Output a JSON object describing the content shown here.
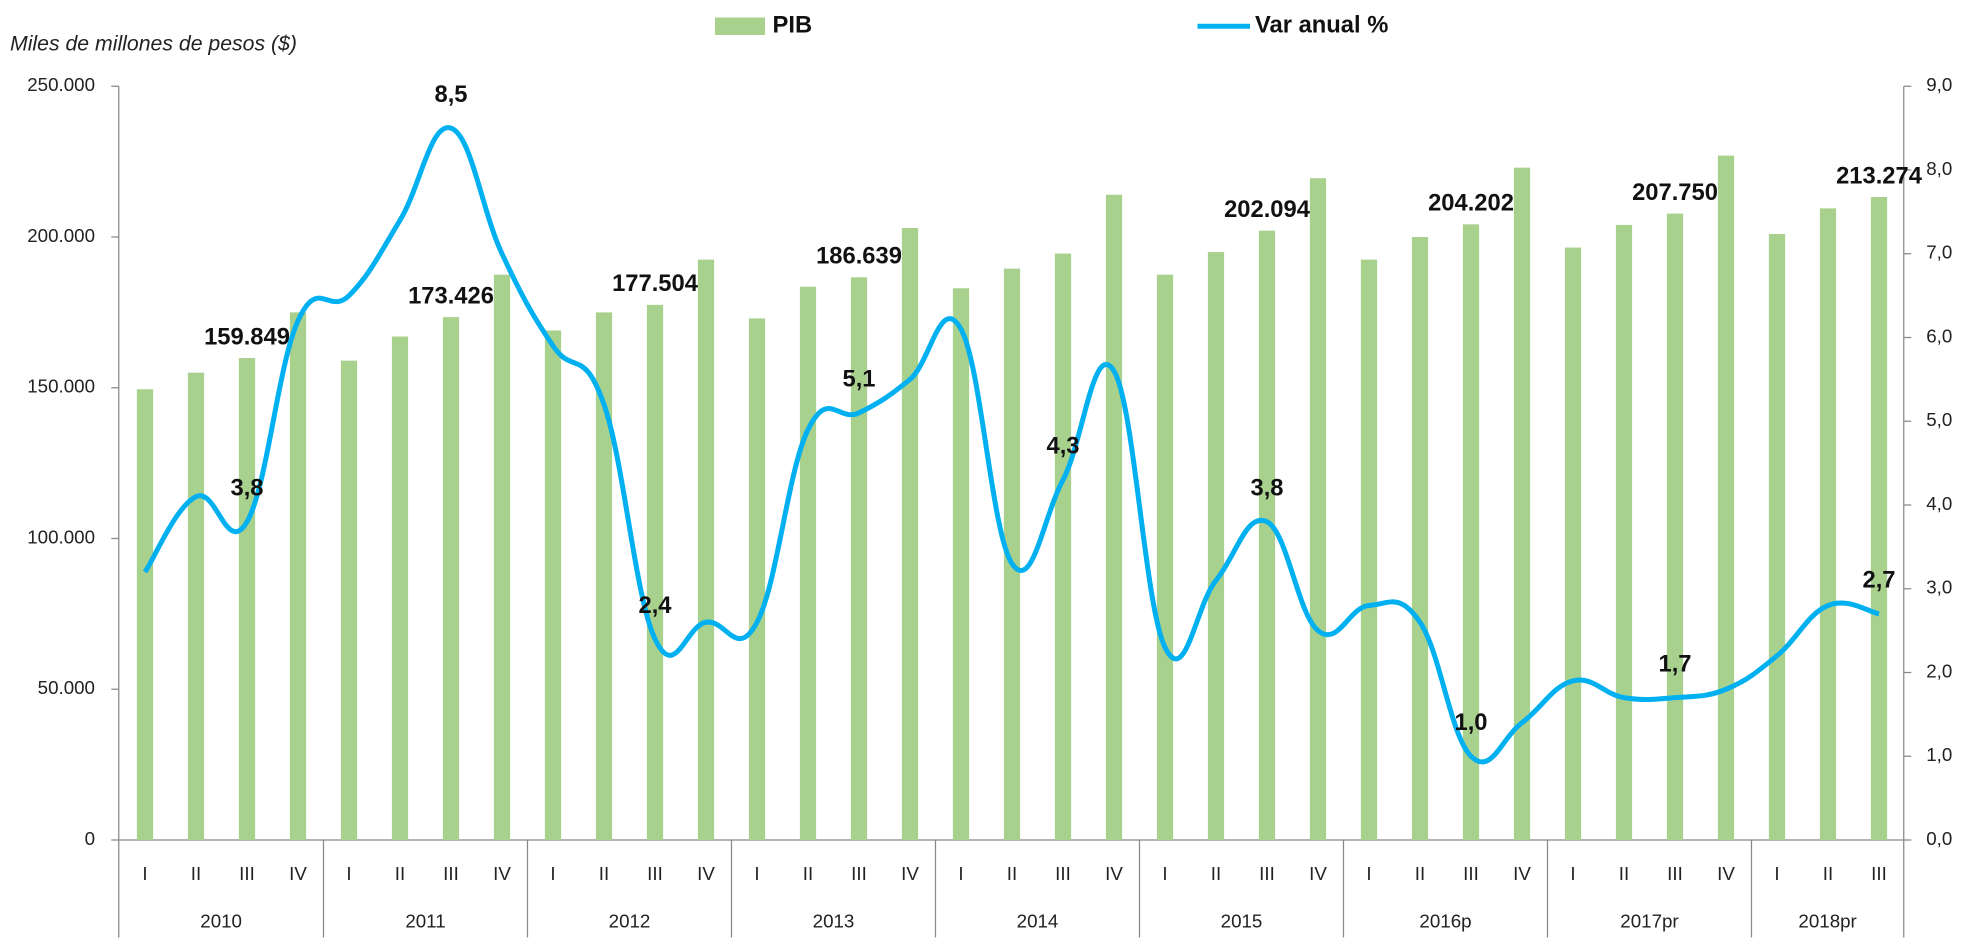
{
  "chart_data": {
    "type": "bar_line",
    "y_axis_label": "Miles de millones de pesos ($)",
    "categories": [
      "I",
      "II",
      "III",
      "IV",
      "I",
      "II",
      "III",
      "IV",
      "I",
      "II",
      "III",
      "IV",
      "I",
      "II",
      "III",
      "IV",
      "I",
      "II",
      "III",
      "IV",
      "I",
      "II",
      "III",
      "IV",
      "I",
      "II",
      "III",
      "IV",
      "I",
      "II",
      "III",
      "IV",
      "I",
      "II",
      "III"
    ],
    "years": [
      "2010",
      "2011",
      "2012",
      "2013",
      "2014",
      "2015",
      "2016p",
      "2017pr",
      "2018pr"
    ],
    "series": [
      {
        "name": "PIB",
        "type": "bar",
        "color": "#a9d18e",
        "values": [
          149500,
          155000,
          159849,
          175000,
          159000,
          167000,
          173426,
          187500,
          169000,
          175000,
          177504,
          192500,
          173000,
          183500,
          186639,
          203000,
          183000,
          189500,
          194500,
          214000,
          187500,
          195000,
          202094,
          219500,
          192500,
          200000,
          204202,
          223000,
          196500,
          204000,
          207750,
          227000,
          201000,
          209500,
          213274
        ],
        "value_labels": [
          null,
          null,
          "159.849",
          null,
          null,
          null,
          "173.426",
          null,
          null,
          null,
          "177.504",
          null,
          null,
          null,
          "186.639",
          null,
          null,
          null,
          null,
          null,
          null,
          null,
          "202.094",
          null,
          null,
          null,
          "204.202",
          null,
          null,
          null,
          "207.750",
          null,
          null,
          null,
          "213.274"
        ]
      },
      {
        "name": "Var anual %",
        "type": "line",
        "axis": "y2",
        "color": "#00b0f0",
        "values": [
          3.2,
          4.1,
          3.8,
          6.2,
          6.5,
          7.4,
          8.5,
          7.0,
          5.9,
          5.2,
          2.4,
          2.6,
          2.6,
          4.9,
          5.1,
          5.5,
          6.1,
          3.3,
          4.3,
          5.6,
          2.3,
          3.1,
          3.8,
          2.5,
          2.8,
          2.6,
          1.0,
          1.4,
          1.9,
          1.7,
          1.7,
          1.8,
          2.2,
          2.8,
          2.7
        ],
        "value_labels": [
          null,
          null,
          "3,8",
          null,
          null,
          null,
          "8,5",
          null,
          null,
          null,
          "2,4",
          null,
          null,
          null,
          "5,1",
          null,
          null,
          null,
          "4,3",
          null,
          null,
          null,
          "3,8",
          null,
          null,
          null,
          "1,0",
          null,
          null,
          null,
          "1,7",
          null,
          null,
          null,
          "2,7"
        ]
      }
    ],
    "ylim": [
      0,
      250000
    ],
    "yticks": [
      0,
      {
        "value": 50000,
        "label": "50.000"
      },
      {
        "value": 100000,
        "label": "100.000"
      },
      {
        "value": 150000,
        "label": "150.000"
      },
      {
        "value": 200000,
        "label": "200.000"
      },
      {
        "value": 250000,
        "label": "250.000"
      }
    ],
    "y2lim": [
      0,
      9
    ],
    "y2ticks": [
      {
        "value": 0,
        "label": "0,0"
      },
      {
        "value": 1,
        "label": "1,0"
      },
      {
        "value": 2,
        "label": "2,0"
      },
      {
        "value": 3,
        "label": "3,0"
      },
      {
        "value": 4,
        "label": "4,0"
      },
      {
        "value": 5,
        "label": "5,0"
      },
      {
        "value": 6,
        "label": "6,0"
      },
      {
        "value": 7,
        "label": "7,0"
      },
      {
        "value": 8,
        "label": "8,0"
      },
      {
        "value": 9,
        "label": "9,0"
      }
    ],
    "legend": "top"
  }
}
